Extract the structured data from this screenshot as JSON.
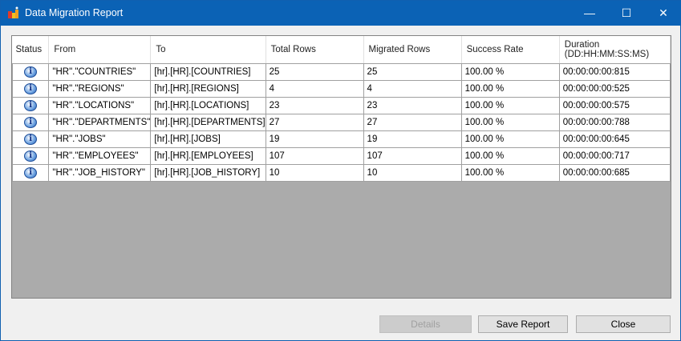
{
  "window": {
    "title": "Data Migration Report",
    "minimize": "—",
    "maximize": "☐",
    "close": "✕"
  },
  "columns": [
    "Status",
    "From",
    "To",
    "Total Rows",
    "Migrated Rows",
    "Success Rate",
    "Duration\n(DD:HH:MM:SS:MS)"
  ],
  "rows": [
    {
      "status": "info-icon",
      "from": "\"HR\".\"COUNTRIES\"",
      "to": "[hr].[HR].[COUNTRIES]",
      "total": "25",
      "migrated": "25",
      "rate": "100.00 %",
      "duration": "00:00:00:00:815"
    },
    {
      "status": "info-icon",
      "from": "\"HR\".\"REGIONS\"",
      "to": "[hr].[HR].[REGIONS]",
      "total": "4",
      "migrated": "4",
      "rate": "100.00 %",
      "duration": "00:00:00:00:525"
    },
    {
      "status": "info-icon",
      "from": "\"HR\".\"LOCATIONS\"",
      "to": "[hr].[HR].[LOCATIONS]",
      "total": "23",
      "migrated": "23",
      "rate": "100.00 %",
      "duration": "00:00:00:00:575"
    },
    {
      "status": "info-icon",
      "from": "\"HR\".\"DEPARTMENTS\"",
      "to": "[hr].[HR].[DEPARTMENTS]",
      "total": "27",
      "migrated": "27",
      "rate": "100.00 %",
      "duration": "00:00:00:00:788"
    },
    {
      "status": "info-icon",
      "from": "\"HR\".\"JOBS\"",
      "to": "[hr].[HR].[JOBS]",
      "total": "19",
      "migrated": "19",
      "rate": "100.00 %",
      "duration": "00:00:00:00:645"
    },
    {
      "status": "info-icon",
      "from": "\"HR\".\"EMPLOYEES\"",
      "to": "[hr].[HR].[EMPLOYEES]",
      "total": "107",
      "migrated": "107",
      "rate": "100.00 %",
      "duration": "00:00:00:00:717"
    },
    {
      "status": "info-icon",
      "from": "\"HR\".\"JOB_HISTORY\"",
      "to": "[hr].[HR].[JOB_HISTORY]",
      "total": "10",
      "migrated": "10",
      "rate": "100.00 %",
      "duration": "00:00:00:00:685"
    }
  ],
  "buttons": {
    "details": "Details",
    "save": "Save Report",
    "close": "Close"
  }
}
